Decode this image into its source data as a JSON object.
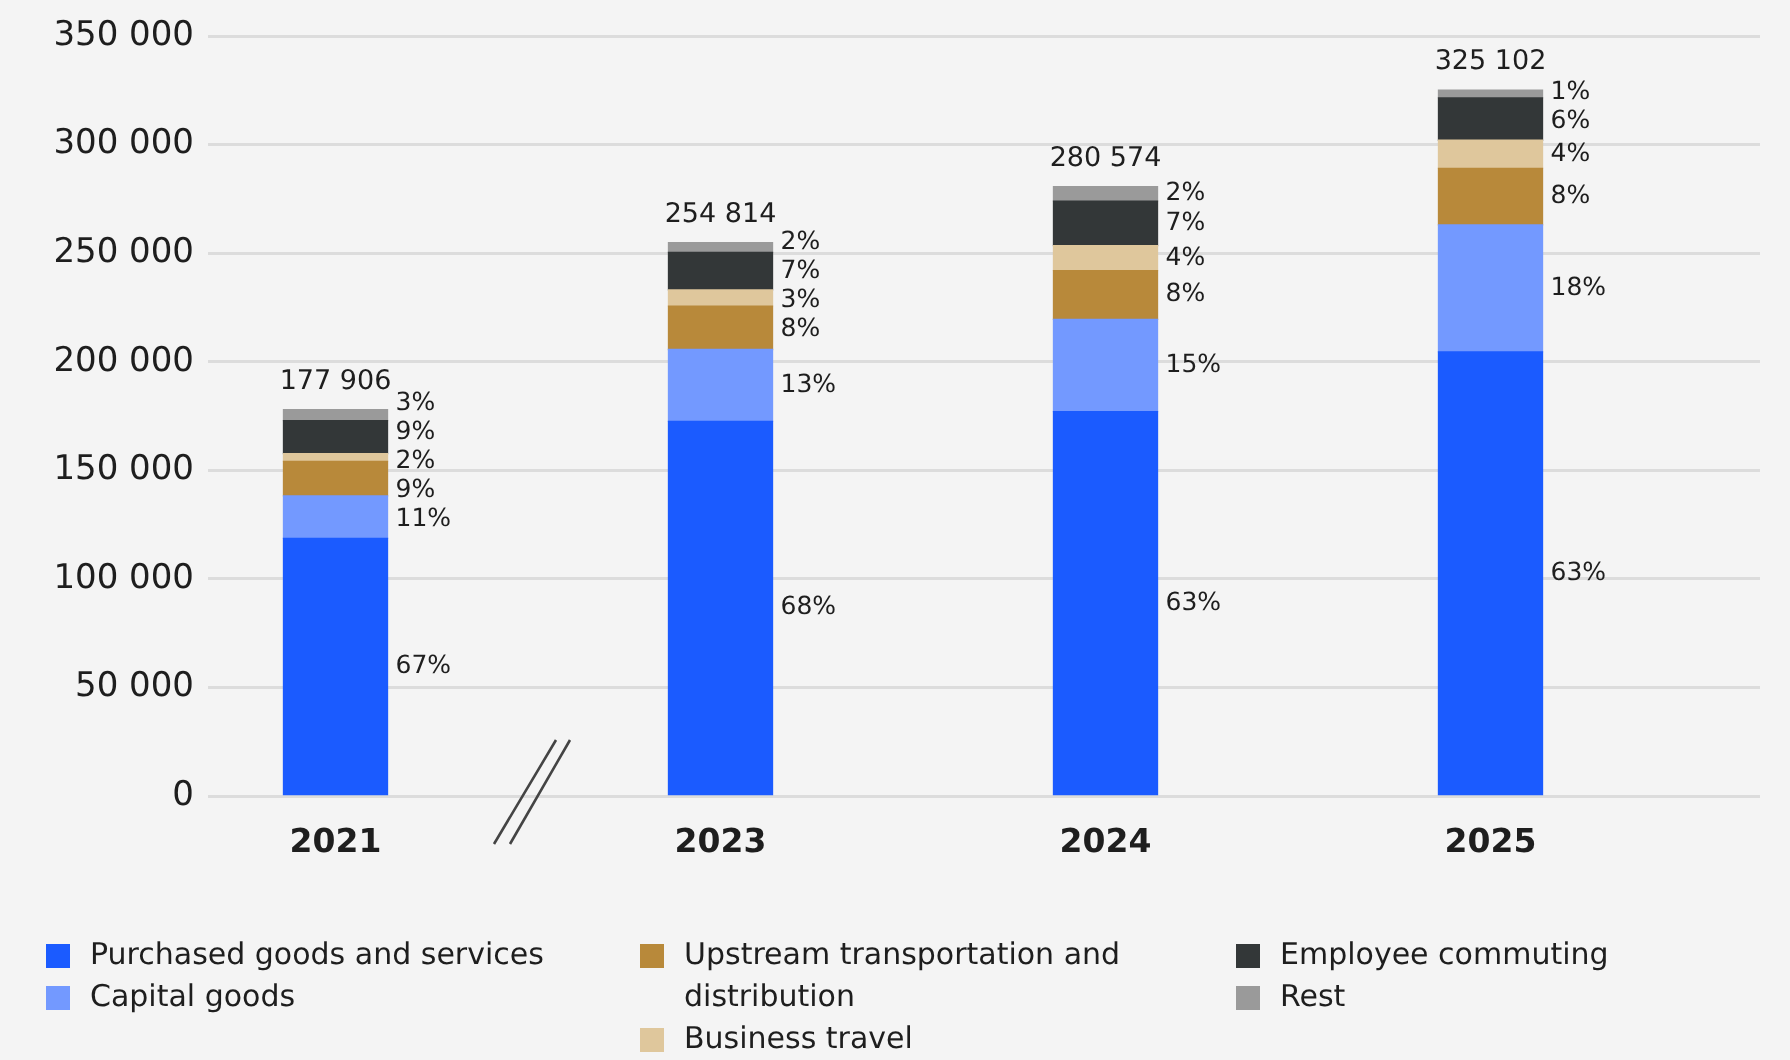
{
  "chart_data": {
    "type": "bar",
    "stacked": true,
    "categories": [
      "2021",
      "2023",
      "2024",
      "2025"
    ],
    "series": [
      {
        "name": "Purchased goods and services",
        "color": "#1b5bff",
        "values": [
          118606,
          172514,
          176974,
          204502
        ]
      },
      {
        "name": "Capital goods",
        "color": "#7399ff",
        "values": [
          19600,
          33100,
          42500,
          58500
        ]
      },
      {
        "name": "Upstream transportation and distribution",
        "color": "#b8893a",
        "values": [
          15900,
          20000,
          22500,
          26000
        ]
      },
      {
        "name": "Business travel",
        "color": "#dfc79c",
        "values": [
          3600,
          7500,
          11500,
          13000
        ]
      },
      {
        "name": "Employee commuting",
        "color": "#333738",
        "values": [
          15200,
          17200,
          20500,
          19500
        ]
      },
      {
        "name": "Rest",
        "color": "#9a9a9a",
        "values": [
          5000,
          4500,
          6600,
          3600
        ]
      }
    ],
    "totals": [
      "177 906",
      "254 814",
      "280 574",
      "325 102"
    ],
    "annotations": [
      "3%",
      "9%",
      "2%",
      "9%",
      "11%",
      "67%",
      "2%",
      "7%",
      "3%",
      "8%",
      "13%",
      "68%",
      "2%",
      "7%",
      "4%",
      "8%",
      "15%",
      "63%",
      "1%",
      "6%",
      "4%",
      "8%",
      "18%",
      "63%"
    ],
    "ylim": [
      0,
      350000
    ],
    "yticks": [
      0,
      {
        "value": 50000,
        "label": "50 000"
      },
      {
        "value": 100000,
        "label": "100 000"
      },
      {
        "value": 150000,
        "label": "150 000"
      },
      {
        "value": 200000,
        "label": "200 000"
      },
      {
        "value": 250000,
        "label": "250 000"
      },
      {
        "value": 300000,
        "label": "300 000"
      },
      {
        "value": 350000,
        "label": "350 000"
      }
    ],
    "grid": "y",
    "legend": "bottom"
  }
}
